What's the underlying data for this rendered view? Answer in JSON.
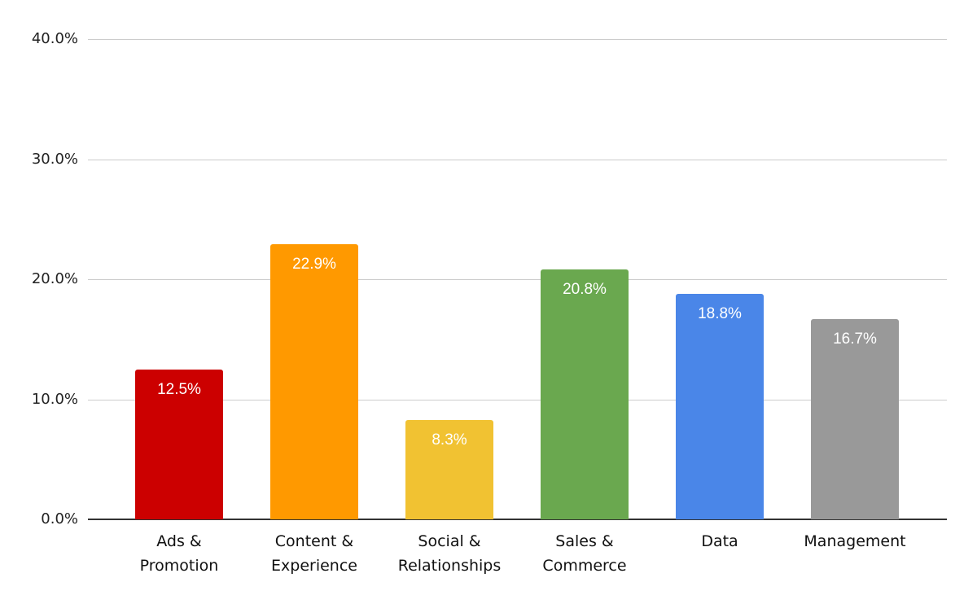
{
  "chart_data": {
    "type": "bar",
    "title": "",
    "xlabel": "",
    "ylabel": "",
    "categories": [
      "Ads & Promotion",
      "Content & Experience",
      "Social & Relationships",
      "Sales & Commerce",
      "Data",
      "Management"
    ],
    "category_lines": [
      [
        "Ads &",
        "Promotion"
      ],
      [
        "Content &",
        "Experience"
      ],
      [
        "Social &",
        "Relationships"
      ],
      [
        "Sales &",
        "Commerce"
      ],
      [
        "Data",
        ""
      ],
      [
        "Management",
        ""
      ]
    ],
    "values": [
      12.5,
      22.9,
      8.3,
      20.8,
      18.8,
      16.7
    ],
    "value_labels": [
      "12.5%",
      "22.9%",
      "8.3%",
      "20.8%",
      "18.8%",
      "16.7%"
    ],
    "colors": [
      "#cc0000",
      "#ff9900",
      "#f1c232",
      "#6aa84f",
      "#4a86e8",
      "#999999"
    ],
    "ylim": [
      0,
      40
    ],
    "yticks": [
      "0.0%",
      "10.0%",
      "20.0%",
      "30.0%",
      "40.0%"
    ],
    "grid": true,
    "legend": "none"
  }
}
